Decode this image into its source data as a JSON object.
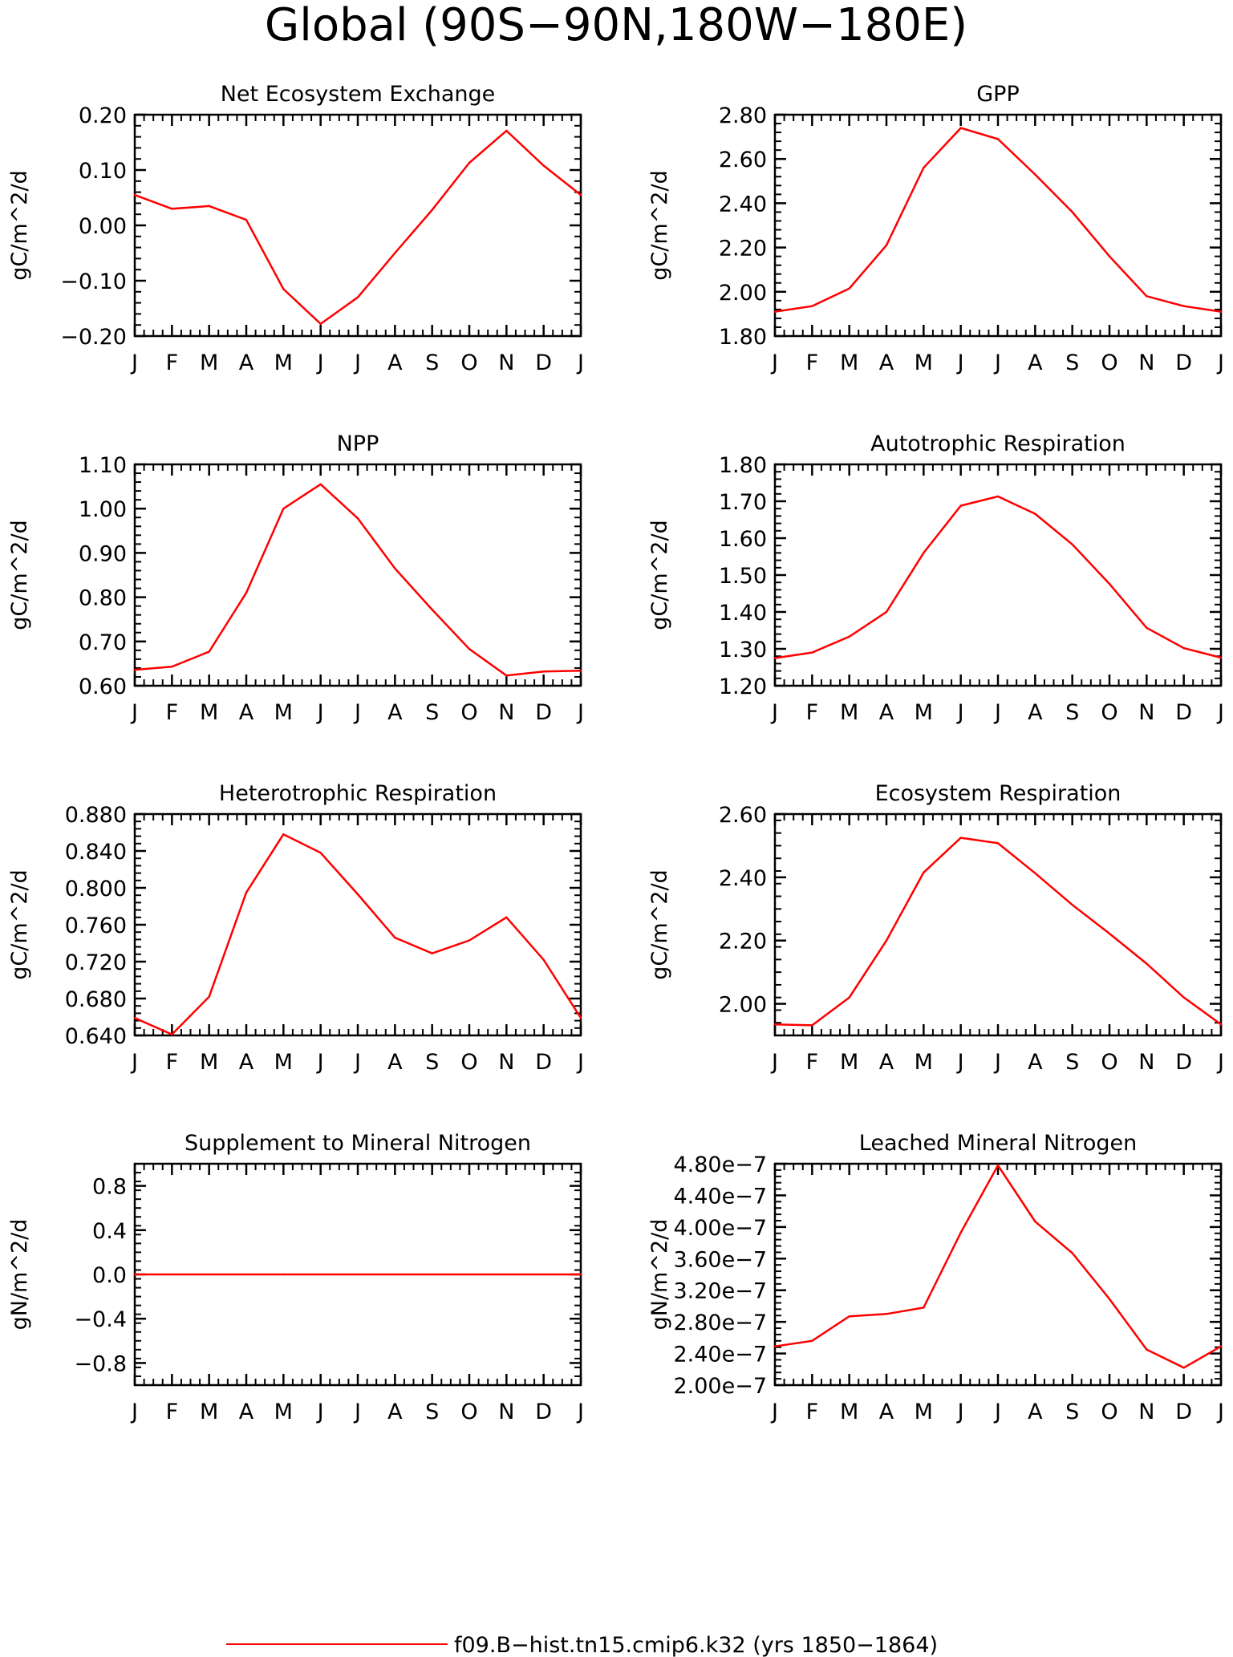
{
  "figure": {
    "title": "Global (90S−90N,180W−180E)",
    "legend": {
      "label": "f09.B−hist.tn15.cmip6.k32 (yrs 1850−1864)",
      "color": "#ff0000"
    }
  },
  "chart_data": [
    {
      "type": "line",
      "title": "Net Ecosystem Exchange",
      "xlabel": "",
      "ylabel": "gC/m^2/d",
      "categories": [
        "J",
        "F",
        "M",
        "A",
        "M",
        "J",
        "J",
        "A",
        "S",
        "O",
        "N",
        "D",
        "J"
      ],
      "ylim": [
        -0.2,
        0.2
      ],
      "yticks": [
        -0.2,
        -0.1,
        0.0,
        0.1,
        0.2
      ],
      "ytick_labels": [
        "−0.20",
        "−0.10",
        "0.00",
        "0.10",
        "0.20"
      ],
      "series": [
        {
          "color": "#ff0000",
          "values": [
            0.055,
            0.03,
            0.035,
            0.01,
            -0.115,
            -0.178,
            -0.13,
            -0.05,
            0.028,
            0.113,
            0.171,
            0.108,
            0.055
          ]
        }
      ]
    },
    {
      "type": "line",
      "title": "GPP",
      "xlabel": "",
      "ylabel": "gC/m^2/d",
      "categories": [
        "J",
        "F",
        "M",
        "A",
        "M",
        "J",
        "J",
        "A",
        "S",
        "O",
        "N",
        "D",
        "J"
      ],
      "ylim": [
        1.8,
        2.8
      ],
      "yticks": [
        1.8,
        2.0,
        2.2,
        2.4,
        2.6,
        2.8
      ],
      "ytick_labels": [
        "1.80",
        "2.00",
        "2.20",
        "2.40",
        "2.60",
        "2.80"
      ],
      "series": [
        {
          "color": "#ff0000",
          "values": [
            1.91,
            1.935,
            2.015,
            2.21,
            2.56,
            2.74,
            2.69,
            2.53,
            2.36,
            2.16,
            1.98,
            1.935,
            1.91
          ]
        }
      ]
    },
    {
      "type": "line",
      "title": "NPP",
      "xlabel": "",
      "ylabel": "gC/m^2/d",
      "categories": [
        "J",
        "F",
        "M",
        "A",
        "M",
        "J",
        "J",
        "A",
        "S",
        "O",
        "N",
        "D",
        "J"
      ],
      "ylim": [
        0.6,
        1.1
      ],
      "yticks": [
        0.6,
        0.7,
        0.8,
        0.9,
        1.0,
        1.1
      ],
      "ytick_labels": [
        "0.60",
        "0.70",
        "0.80",
        "0.90",
        "1.00",
        "1.10"
      ],
      "series": [
        {
          "color": "#ff0000",
          "values": [
            0.636,
            0.643,
            0.677,
            0.81,
            1.0,
            1.055,
            0.978,
            0.865,
            0.772,
            0.683,
            0.623,
            0.632,
            0.634
          ]
        }
      ]
    },
    {
      "type": "line",
      "title": "Autotrophic Respiration",
      "xlabel": "",
      "ylabel": "gC/m^2/d",
      "categories": [
        "J",
        "F",
        "M",
        "A",
        "M",
        "J",
        "J",
        "A",
        "S",
        "O",
        "N",
        "D",
        "J"
      ],
      "ylim": [
        1.2,
        1.8
      ],
      "yticks": [
        1.2,
        1.3,
        1.4,
        1.5,
        1.6,
        1.7,
        1.8
      ],
      "ytick_labels": [
        "1.20",
        "1.30",
        "1.40",
        "1.50",
        "1.60",
        "1.70",
        "1.80"
      ],
      "series": [
        {
          "color": "#ff0000",
          "values": [
            1.275,
            1.29,
            1.333,
            1.4,
            1.56,
            1.688,
            1.713,
            1.666,
            1.583,
            1.476,
            1.357,
            1.302,
            1.276
          ]
        }
      ]
    },
    {
      "type": "line",
      "title": "Heterotrophic Respiration",
      "xlabel": "",
      "ylabel": "gC/m^2/d",
      "categories": [
        "J",
        "F",
        "M",
        "A",
        "M",
        "J",
        "J",
        "A",
        "S",
        "O",
        "N",
        "D",
        "J"
      ],
      "ylim": [
        0.64,
        0.88
      ],
      "yticks": [
        0.64,
        0.68,
        0.72,
        0.76,
        0.8,
        0.84,
        0.88
      ],
      "ytick_labels": [
        "0.640",
        "0.680",
        "0.720",
        "0.760",
        "0.800",
        "0.840",
        "0.880"
      ],
      "series": [
        {
          "color": "#ff0000",
          "values": [
            0.659,
            0.641,
            0.682,
            0.795,
            0.858,
            0.838,
            0.793,
            0.746,
            0.729,
            0.743,
            0.768,
            0.722,
            0.659
          ]
        }
      ]
    },
    {
      "type": "line",
      "title": "Ecosystem Respiration",
      "xlabel": "",
      "ylabel": "gC/m^2/d",
      "categories": [
        "J",
        "F",
        "M",
        "A",
        "M",
        "J",
        "J",
        "A",
        "S",
        "O",
        "N",
        "D",
        "J"
      ],
      "ylim": [
        1.9,
        2.6
      ],
      "yticks": [
        2.0,
        2.2,
        2.4,
        2.6
      ],
      "ytick_labels": [
        "2.00",
        "2.20",
        "2.40",
        "2.60"
      ],
      "series": [
        {
          "color": "#ff0000",
          "values": [
            1.935,
            1.932,
            2.02,
            2.2,
            2.415,
            2.525,
            2.508,
            2.413,
            2.313,
            2.222,
            2.127,
            2.02,
            1.935
          ]
        }
      ]
    },
    {
      "type": "line",
      "title": "Supplement to Mineral Nitrogen",
      "xlabel": "",
      "ylabel": "gN/m^2/d",
      "categories": [
        "J",
        "F",
        "M",
        "A",
        "M",
        "J",
        "J",
        "A",
        "S",
        "O",
        "N",
        "D",
        "J"
      ],
      "ylim": [
        -1.0,
        1.0
      ],
      "yticks": [
        -0.8,
        -0.4,
        0.0,
        0.4,
        0.8
      ],
      "ytick_labels": [
        "−0.8",
        "−0.4",
        "0.0",
        "0.4",
        "0.8"
      ],
      "series": [
        {
          "color": "#ff0000",
          "values": [
            0,
            0,
            0,
            0,
            0,
            0,
            0,
            0,
            0,
            0,
            0,
            0,
            0
          ]
        }
      ]
    },
    {
      "type": "line",
      "title": "Leached Mineral Nitrogen",
      "xlabel": "",
      "ylabel": "gN/m^2/d",
      "categories": [
        "J",
        "F",
        "M",
        "A",
        "M",
        "J",
        "J",
        "A",
        "S",
        "O",
        "N",
        "D",
        "J"
      ],
      "ylim": [
        2e-07,
        4.8e-07
      ],
      "yticks": [
        2e-07,
        2.4e-07,
        2.8e-07,
        3.2e-07,
        3.6e-07,
        4e-07,
        4.4e-07,
        4.8e-07
      ],
      "ytick_labels": [
        "2.00e−7",
        "2.40e−7",
        "2.80e−7",
        "3.20e−7",
        "3.60e−7",
        "4.00e−7",
        "4.40e−7",
        "4.80e−7"
      ],
      "series": [
        {
          "color": "#ff0000",
          "values": [
            2.49e-07,
            2.56e-07,
            2.87e-07,
            2.9e-07,
            2.98e-07,
            3.93e-07,
            4.78e-07,
            4.07e-07,
            3.67e-07,
            3.09e-07,
            2.45e-07,
            2.22e-07,
            2.49e-07
          ]
        }
      ]
    }
  ]
}
